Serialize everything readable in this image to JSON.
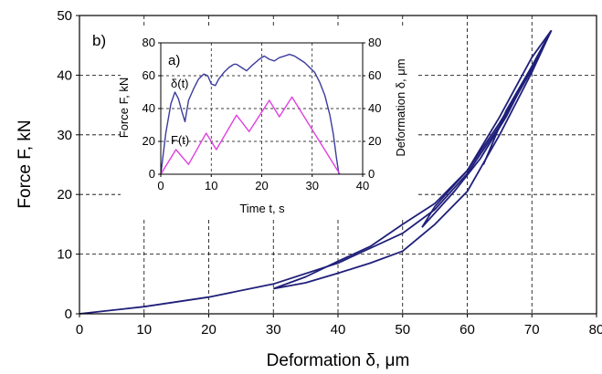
{
  "chart_data": [
    {
      "id": "main",
      "type": "line",
      "panel_label": "b)",
      "title": "",
      "xlabel": "Deformation δ, μm",
      "ylabel": "Force F, kN",
      "xlim": [
        0,
        80
      ],
      "ylim": [
        0,
        50
      ],
      "x_ticks": [
        0,
        10,
        20,
        30,
        40,
        50,
        60,
        70,
        80
      ],
      "y_ticks": [
        0,
        10,
        20,
        30,
        40,
        50
      ],
      "grid": "dashed",
      "line_color": "#1f1f7a",
      "series": [
        {
          "values": [
            [
              0,
              0
            ],
            [
              10,
              1.2
            ],
            [
              20,
              2.8
            ],
            [
              30,
              5.0
            ],
            [
              40,
              8.5
            ],
            [
              50,
              13.5
            ],
            [
              55,
              17.5
            ],
            [
              60,
              23.5
            ],
            [
              65,
              31.5
            ],
            [
              70,
              41
            ],
            [
              73,
              47.5
            ]
          ]
        },
        {
          "values": [
            [
              73,
              47.5
            ],
            [
              70,
              40.5
            ],
            [
              65,
              30
            ],
            [
              60,
              20.5
            ],
            [
              55,
              15
            ],
            [
              50,
              10.5
            ],
            [
              45,
              8.5
            ],
            [
              40,
              6.8
            ],
            [
              35,
              5.2
            ],
            [
              30,
              4.2
            ]
          ]
        },
        {
          "values": [
            [
              30,
              4.2
            ],
            [
              35,
              6.2
            ],
            [
              40,
              8.8
            ],
            [
              45,
              11.3
            ],
            [
              50,
              15
            ],
            [
              55,
              18.5
            ],
            [
              60,
              24
            ],
            [
              65,
              33
            ],
            [
              70,
              43
            ],
            [
              73,
              47.5
            ]
          ]
        },
        {
          "values": [
            [
              73,
              47.5
            ],
            [
              70,
              41
            ],
            [
              65,
              32
            ],
            [
              60,
              24
            ],
            [
              55,
              18
            ],
            [
              53,
              14.5
            ]
          ]
        },
        {
          "values": [
            [
              53,
              14.5
            ],
            [
              58,
              20.5
            ],
            [
              62,
              26
            ],
            [
              66,
              33
            ],
            [
              70,
              41.5
            ],
            [
              73,
              47.5
            ]
          ]
        },
        {
          "values": [
            [
              73,
              47.5
            ],
            [
              70,
              41.5
            ],
            [
              66,
              34
            ],
            [
              62.5,
              25
            ]
          ]
        }
      ]
    },
    {
      "id": "inset",
      "type": "line",
      "panel_label": "a)",
      "title": "",
      "xlabel": "Time t, s",
      "ylabel": "Force F, kN",
      "y2label": "Deformation δ, μm",
      "xlim": [
        0,
        40
      ],
      "ylim": [
        0,
        80
      ],
      "y2lim": [
        0,
        80
      ],
      "x_ticks": [
        0,
        10,
        20,
        30,
        40
      ],
      "y_ticks": [
        0,
        20,
        40,
        60,
        80
      ],
      "y2_ticks": [
        0,
        20,
        40,
        60,
        80
      ],
      "grid": "dashed",
      "series": [
        {
          "name": "δ(t)",
          "color": "#3b3b9e",
          "axis": "right",
          "x": [
            0,
            1,
            2,
            2.8,
            3.5,
            4.2,
            4.8,
            5.5,
            6.5,
            7.5,
            8.5,
            9.3,
            10,
            10.8,
            11.5,
            12.5,
            13.5,
            14.5,
            15,
            16,
            17,
            18,
            19.5,
            20.5,
            21.5,
            22.5,
            23.5,
            24.5,
            25.5,
            26.5,
            27.5,
            28.5,
            29.5,
            30.5,
            31.5,
            32.5,
            33.5,
            34.2,
            34.8,
            35.3
          ],
          "values": [
            0,
            25,
            43,
            50,
            46,
            38,
            32,
            45,
            52,
            58,
            61,
            60,
            55,
            54,
            58,
            62,
            65,
            67,
            67,
            65,
            63,
            66,
            70,
            72,
            70,
            69,
            71,
            72,
            73,
            72,
            70,
            68,
            65,
            62,
            56,
            48,
            36,
            24,
            10,
            0
          ]
        },
        {
          "name": "F(t)",
          "color": "#e040e0",
          "axis": "left",
          "x": [
            0,
            3,
            5.5,
            9,
            11,
            15,
            17.5,
            21.5,
            23.5,
            26,
            35.5
          ],
          "values": [
            0,
            15,
            6,
            25,
            15,
            36,
            26,
            45,
            35,
            47,
            0
          ]
        }
      ]
    }
  ]
}
